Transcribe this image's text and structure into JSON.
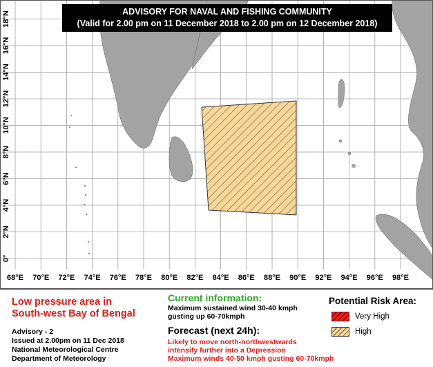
{
  "banner": {
    "title": "ADVISORY FOR NAVAL AND FISHING COMMUNITY",
    "validity": "(Valid for 2.00 pm on 11 December 2018 to 2.00 pm on 12 December 2018)"
  },
  "map": {
    "lon_labels": [
      "68°E",
      "70°E",
      "72°E",
      "74°E",
      "76°E",
      "78°E",
      "80°E",
      "82°E",
      "84°E",
      "86°E",
      "88°E",
      "90°E",
      "92°E",
      "94°E",
      "96°E",
      "98°E"
    ],
    "lat_labels": [
      "0°",
      "2°N",
      "4°N",
      "6°N",
      "8°N",
      "10°N",
      "12°N",
      "14°N",
      "16°N",
      "18°N"
    ],
    "risk_area": {
      "level": "High",
      "lon_range": [
        82.5,
        90
      ],
      "lat_range": [
        3.5,
        11.5
      ]
    },
    "colors": {
      "land": "#a3a3a3",
      "sea": "#ffffff",
      "grid": "#a0a0a0",
      "high": "#f6d79a",
      "very_high": "#e31a1a"
    }
  },
  "footer": {
    "system_title": [
      "Low pressure area in",
      "South-west Bay of Bengal"
    ],
    "advisory_lines": [
      "Advisory - 2",
      "Issued at 2.00pm on 11 Dec 2018",
      "National Meteorological Centre",
      "Department of Meteorology"
    ],
    "current_heading": "Current information:",
    "current_lines": [
      "Maximum sustained wind 30-40 kmph",
      "gusting up 60-70kmph"
    ],
    "forecast_heading": "Forecast (next 24h):",
    "forecast_lines": [
      "Likely to move north-northwestwards",
      "intensify further into a Depression",
      "Maximum winds 40-50 kmph gusting 60-70kmph"
    ],
    "legend_title": "Potential Risk Area:",
    "legend_items": [
      {
        "label": "Very High",
        "color": "#e31a1a"
      },
      {
        "label": "High",
        "color": "#f6d79a"
      }
    ]
  }
}
